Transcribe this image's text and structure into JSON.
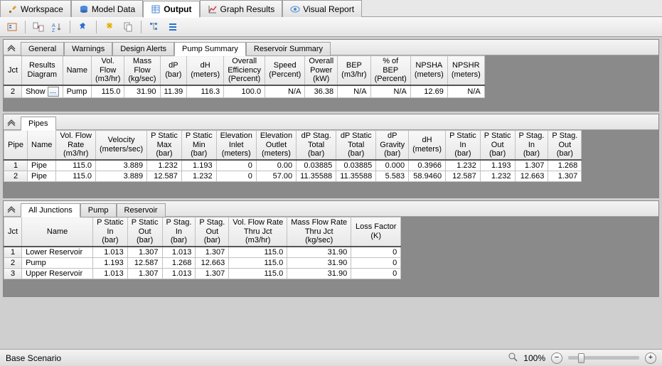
{
  "main_tabs": {
    "workspace": "Workspace",
    "model_data": "Model Data",
    "output": "Output",
    "graph_results": "Graph Results",
    "visual_report": "Visual Report"
  },
  "toolbar_icons": [
    "load",
    "transfer",
    "sort",
    "pin",
    "filter",
    "copy",
    "refresh",
    "list"
  ],
  "pump_panel": {
    "tabs": {
      "general": "General",
      "warnings": "Warnings",
      "design_alerts": "Design Alerts",
      "pump_summary": "Pump Summary",
      "reservoir_summary": "Reservoir Summary"
    },
    "columns": [
      {
        "l1": "Jct",
        "l2": ""
      },
      {
        "l1": "Results",
        "l2": "Diagram"
      },
      {
        "l1": "Name",
        "l2": ""
      },
      {
        "l1": "Vol.",
        "l2": "Flow",
        "u": "(m3/hr)"
      },
      {
        "l1": "Mass",
        "l2": "Flow",
        "u": "(kg/sec)"
      },
      {
        "l1": "dP",
        "l2": "",
        "u": "(bar)"
      },
      {
        "l1": "dH",
        "l2": "",
        "u": "(meters)"
      },
      {
        "l1": "Overall",
        "l2": "Efficiency",
        "u": "(Percent)"
      },
      {
        "l1": "Speed",
        "l2": "",
        "u": "(Percent)"
      },
      {
        "l1": "Overall",
        "l2": "Power",
        "u": "(kW)"
      },
      {
        "l1": "BEP",
        "l2": "",
        "u": "(m3/hr)"
      },
      {
        "l1": "% of",
        "l2": "BEP",
        "u": "(Percent)"
      },
      {
        "l1": "NPSHA",
        "l2": "",
        "u": "(meters)"
      },
      {
        "l1": "NPSHR",
        "l2": "",
        "u": "(meters)"
      }
    ],
    "row": {
      "jct": "2",
      "show": "Show",
      "name": "Pump",
      "vol_flow": "115.0",
      "mass_flow": "31.90",
      "dp": "11.39",
      "dh": "116.3",
      "eff": "100.0",
      "speed": "N/A",
      "power": "36.38",
      "bep": "N/A",
      "pct_bep": "N/A",
      "npsha": "12.69",
      "npshr": "N/A"
    }
  },
  "pipes_panel": {
    "tab": "Pipes",
    "columns": [
      {
        "l1": "Pipe",
        "l2": ""
      },
      {
        "l1": "Name",
        "l2": ""
      },
      {
        "l1": "Vol. Flow",
        "l2": "Rate",
        "u": "(m3/hr)"
      },
      {
        "l1": "Velocity",
        "l2": "",
        "u": "(meters/sec)"
      },
      {
        "l1": "P Static",
        "l2": "Max",
        "u": "(bar)"
      },
      {
        "l1": "P Static",
        "l2": "Min",
        "u": "(bar)"
      },
      {
        "l1": "Elevation",
        "l2": "Inlet",
        "u": "(meters)"
      },
      {
        "l1": "Elevation",
        "l2": "Outlet",
        "u": "(meters)"
      },
      {
        "l1": "dP Stag.",
        "l2": "Total",
        "u": "(bar)"
      },
      {
        "l1": "dP Static",
        "l2": "Total",
        "u": "(bar)"
      },
      {
        "l1": "dP",
        "l2": "Gravity",
        "u": "(bar)"
      },
      {
        "l1": "dH",
        "l2": "",
        "u": "(meters)"
      },
      {
        "l1": "P Static",
        "l2": "In",
        "u": "(bar)"
      },
      {
        "l1": "P Static",
        "l2": "Out",
        "u": "(bar)"
      },
      {
        "l1": "P Stag.",
        "l2": "In",
        "u": "(bar)"
      },
      {
        "l1": "P Stag.",
        "l2": "Out",
        "u": "(bar)"
      }
    ],
    "rows": [
      {
        "id": "1",
        "name": "Pipe",
        "vflow": "115.0",
        "vel": "3.889",
        "psmax": "1.232",
        "psmin": "1.193",
        "elin": "0",
        "elout": "0.00",
        "dpstag": "0.03885",
        "dpstat": "0.03885",
        "dpgrav": "0.000",
        "dh": "0.3966",
        "psin": "1.232",
        "psout": "1.193",
        "pstgin": "1.307",
        "pstgout": "1.268"
      },
      {
        "id": "2",
        "name": "Pipe",
        "vflow": "115.0",
        "vel": "3.889",
        "psmax": "12.587",
        "psmin": "1.232",
        "elin": "0",
        "elout": "57.00",
        "dpstag": "11.35588",
        "dpstat": "11.35588",
        "dpgrav": "5.583",
        "dh": "58.9460",
        "psin": "12.587",
        "psout": "1.232",
        "pstgin": "12.663",
        "pstgout": "1.307"
      }
    ]
  },
  "junctions_panel": {
    "tabs": {
      "all": "All Junctions",
      "pump": "Pump",
      "reservoir": "Reservoir"
    },
    "columns": [
      {
        "l1": "Jct",
        "l2": ""
      },
      {
        "l1": "Name",
        "l2": ""
      },
      {
        "l1": "P Static",
        "l2": "In",
        "u": "(bar)"
      },
      {
        "l1": "P Static",
        "l2": "Out",
        "u": "(bar)"
      },
      {
        "l1": "P Stag.",
        "l2": "In",
        "u": "(bar)"
      },
      {
        "l1": "P Stag.",
        "l2": "Out",
        "u": "(bar)"
      },
      {
        "l1": "Vol. Flow Rate",
        "l2": "Thru Jct",
        "u": "(m3/hr)"
      },
      {
        "l1": "Mass Flow Rate",
        "l2": "Thru Jct",
        "u": "(kg/sec)"
      },
      {
        "l1": "Loss Factor",
        "l2": "(K)",
        "u": ""
      }
    ],
    "rows": [
      {
        "id": "1",
        "name": "Lower Reservoir",
        "psin": "1.013",
        "psout": "1.307",
        "pstgin": "1.013",
        "pstgout": "1.307",
        "vflow": "115.0",
        "mflow": "31.90",
        "k": "0"
      },
      {
        "id": "2",
        "name": "Pump",
        "psin": "1.193",
        "psout": "12.587",
        "pstgin": "1.268",
        "pstgout": "12.663",
        "vflow": "115.0",
        "mflow": "31.90",
        "k": "0"
      },
      {
        "id": "3",
        "name": "Upper Reservoir",
        "psin": "1.013",
        "psout": "1.307",
        "pstgin": "1.013",
        "pstgout": "1.307",
        "vflow": "115.0",
        "mflow": "31.90",
        "k": "0"
      }
    ]
  },
  "status": {
    "scenario": "Base Scenario",
    "zoom": "100%"
  },
  "colors": {
    "accent": "#2a6fd2",
    "panel_border": "#888888",
    "grid_bg": "#8a8a8a"
  }
}
